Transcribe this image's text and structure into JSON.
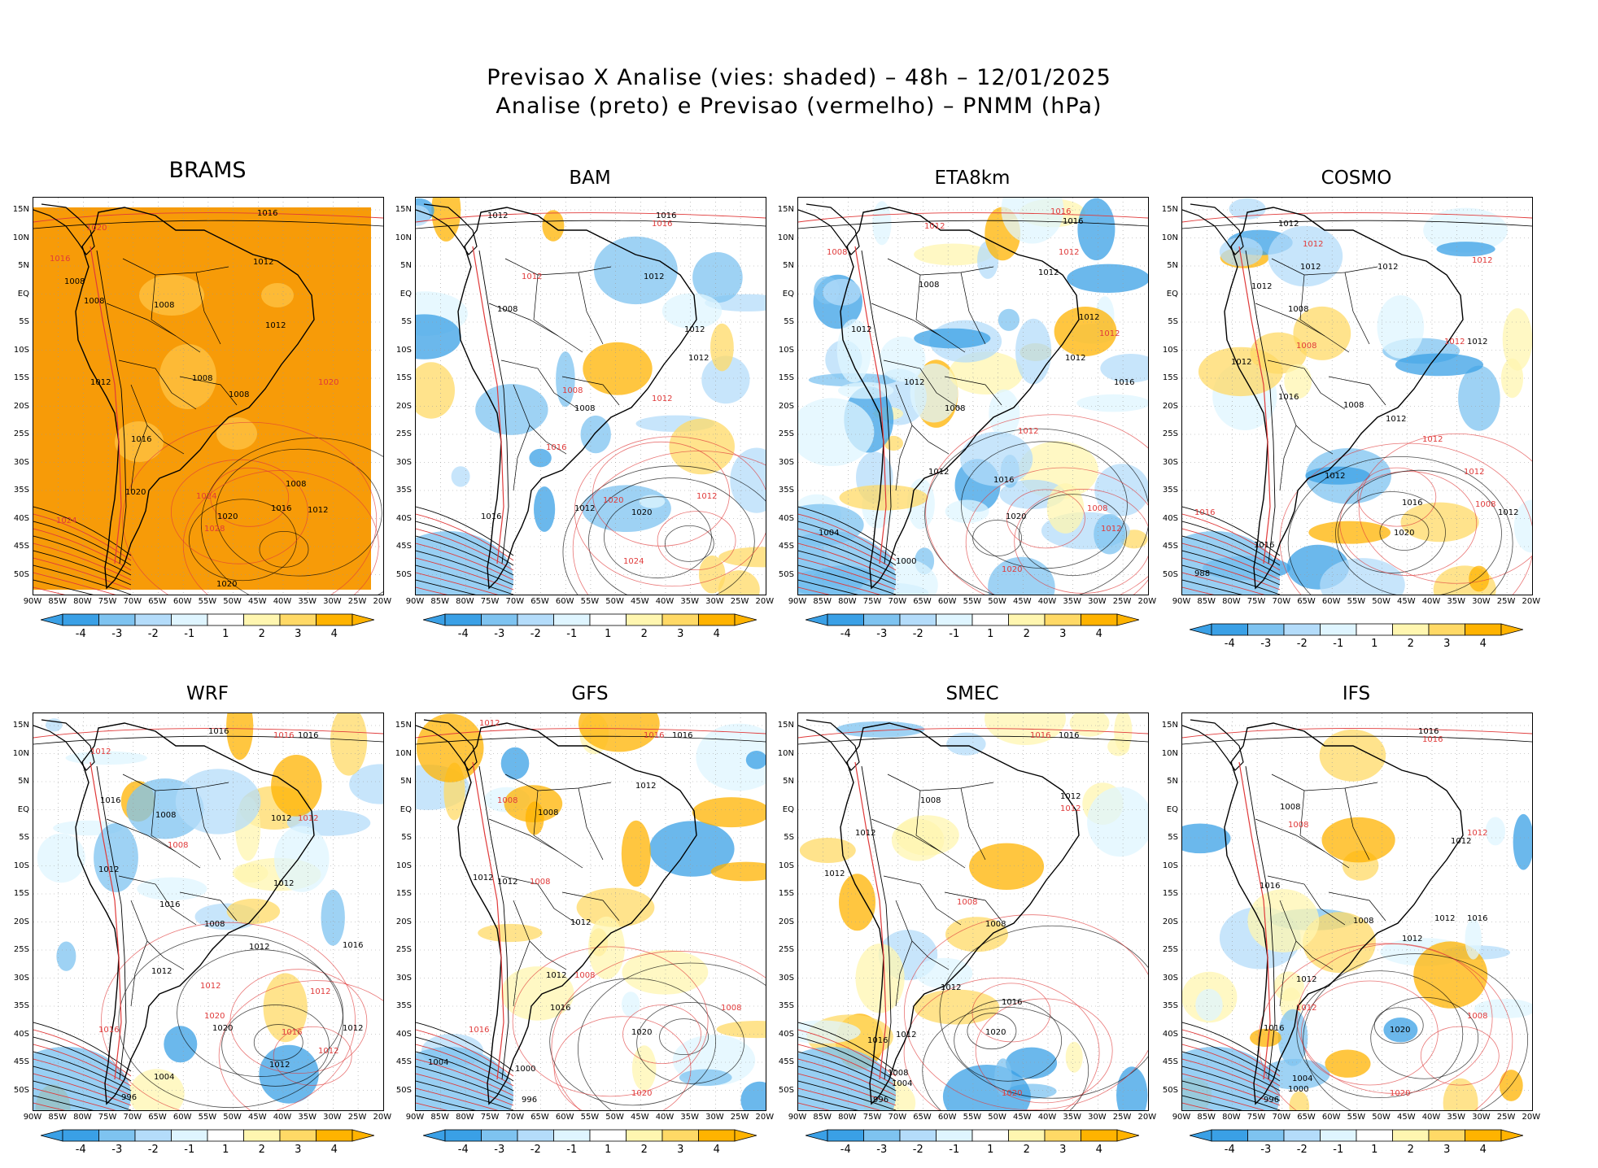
{
  "title": {
    "line1": "Previsao X Analise (vies: shaded) – 48h – 12/01/2025",
    "line2": "Analise (preto) e Previsao (vermelho) – PNMM (hPa)"
  },
  "lat_labels": [
    "15N",
    "10N",
    "5N",
    "EQ",
    "5S",
    "10S",
    "15S",
    "20S",
    "25S",
    "30S",
    "35S",
    "40S",
    "45S",
    "50S"
  ],
  "lon_labels": [
    "90W",
    "85W",
    "80W",
    "75W",
    "70W",
    "65W",
    "60W",
    "55W",
    "50W",
    "45W",
    "40W",
    "35W",
    "30W",
    "25W",
    "20W"
  ],
  "colorbar": {
    "labels": [
      "-4",
      "-3",
      "-2",
      "-1",
      "1",
      "2",
      "3",
      "4"
    ],
    "colors": [
      "#3aa0e6",
      "#7ec3f0",
      "#b4dcfa",
      "#dff5ff",
      "#ffffff",
      "#fff6b0",
      "#ffd966",
      "#ffb300"
    ]
  },
  "colors": {
    "analysis": "#000000",
    "forecast": "#e03a3a",
    "grid": "#999999",
    "brams_bg": "#f79b08"
  },
  "panels": [
    {
      "name": "BRAMS",
      "labels": [
        {
          "t": "1016",
          "x": 275,
          "y": 22,
          "c": "k"
        },
        {
          "t": "1020",
          "x": 65,
          "y": 40,
          "c": "r"
        },
        {
          "t": "1016",
          "x": 20,
          "y": 78,
          "c": "r"
        },
        {
          "t": "1012",
          "x": 270,
          "y": 82,
          "c": "k"
        },
        {
          "t": "1008",
          "x": 38,
          "y": 106,
          "c": "k"
        },
        {
          "t": "1008",
          "x": 62,
          "y": 130,
          "c": "k"
        },
        {
          "t": "1008",
          "x": 148,
          "y": 135,
          "c": "k"
        },
        {
          "t": "1012",
          "x": 285,
          "y": 160,
          "c": "k"
        },
        {
          "t": "1012",
          "x": 70,
          "y": 230,
          "c": "k"
        },
        {
          "t": "1020",
          "x": 350,
          "y": 230,
          "c": "r"
        },
        {
          "t": "1008",
          "x": 195,
          "y": 225,
          "c": "k"
        },
        {
          "t": "1008",
          "x": 240,
          "y": 245,
          "c": "k"
        },
        {
          "t": "1016",
          "x": 120,
          "y": 300,
          "c": "k"
        },
        {
          "t": "1008",
          "x": 310,
          "y": 355,
          "c": "k"
        },
        {
          "t": "1020",
          "x": 113,
          "y": 365,
          "c": "k"
        },
        {
          "t": "1024",
          "x": 200,
          "y": 370,
          "c": "r"
        },
        {
          "t": "1020",
          "x": 226,
          "y": 395,
          "c": "k"
        },
        {
          "t": "1016",
          "x": 292,
          "y": 385,
          "c": "k"
        },
        {
          "t": "1012",
          "x": 337,
          "y": 387,
          "c": "k"
        },
        {
          "t": "1024",
          "x": 28,
          "y": 400,
          "c": "r"
        },
        {
          "t": "1028",
          "x": 210,
          "y": 410,
          "c": "r"
        },
        {
          "t": "1020",
          "x": 225,
          "y": 478,
          "c": "k"
        }
      ]
    },
    {
      "name": "BAM",
      "labels": [
        {
          "t": "1012",
          "x": 88,
          "y": 25,
          "c": "k"
        },
        {
          "t": "1016",
          "x": 295,
          "y": 25,
          "c": "k"
        },
        {
          "t": "1016",
          "x": 290,
          "y": 35,
          "c": "r"
        },
        {
          "t": "1012",
          "x": 130,
          "y": 100,
          "c": "r"
        },
        {
          "t": "1012",
          "x": 280,
          "y": 100,
          "c": "k"
        },
        {
          "t": "1008",
          "x": 100,
          "y": 140,
          "c": "k"
        },
        {
          "t": "1012",
          "x": 330,
          "y": 165,
          "c": "k"
        },
        {
          "t": "1012",
          "x": 335,
          "y": 200,
          "c": "k"
        },
        {
          "t": "1008",
          "x": 180,
          "y": 240,
          "c": "r"
        },
        {
          "t": "1008",
          "x": 195,
          "y": 262,
          "c": "k"
        },
        {
          "t": "1012",
          "x": 290,
          "y": 250,
          "c": "r"
        },
        {
          "t": "1016",
          "x": 160,
          "y": 310,
          "c": "r"
        },
        {
          "t": "1020",
          "x": 230,
          "y": 375,
          "c": "r"
        },
        {
          "t": "1020",
          "x": 265,
          "y": 390,
          "c": "k"
        },
        {
          "t": "1016",
          "x": 80,
          "y": 395,
          "c": "k"
        },
        {
          "t": "1012",
          "x": 345,
          "y": 370,
          "c": "r"
        },
        {
          "t": "1012",
          "x": 195,
          "y": 385,
          "c": "k"
        },
        {
          "t": "1024",
          "x": 255,
          "y": 450,
          "c": "r"
        }
      ]
    },
    {
      "name": "ETA8km",
      "labels": [
        {
          "t": "1016",
          "x": 310,
          "y": 20,
          "c": "r"
        },
        {
          "t": "1016",
          "x": 325,
          "y": 32,
          "c": "k"
        },
        {
          "t": "1012",
          "x": 155,
          "y": 38,
          "c": "r"
        },
        {
          "t": "1008",
          "x": 35,
          "y": 70,
          "c": "r"
        },
        {
          "t": "1012",
          "x": 320,
          "y": 70,
          "c": "r"
        },
        {
          "t": "1012",
          "x": 295,
          "y": 95,
          "c": "k"
        },
        {
          "t": "1008",
          "x": 148,
          "y": 110,
          "c": "k"
        },
        {
          "t": "1012",
          "x": 345,
          "y": 150,
          "c": "k"
        },
        {
          "t": "1012",
          "x": 370,
          "y": 170,
          "c": "r"
        },
        {
          "t": "1012",
          "x": 65,
          "y": 165,
          "c": "k"
        },
        {
          "t": "1012",
          "x": 328,
          "y": 200,
          "c": "k"
        },
        {
          "t": "1016",
          "x": 388,
          "y": 230,
          "c": "k"
        },
        {
          "t": "1012",
          "x": 130,
          "y": 230,
          "c": "k"
        },
        {
          "t": "1008",
          "x": 180,
          "y": 262,
          "c": "k"
        },
        {
          "t": "1012",
          "x": 270,
          "y": 290,
          "c": "r"
        },
        {
          "t": "1012",
          "x": 160,
          "y": 340,
          "c": "k"
        },
        {
          "t": "1016",
          "x": 240,
          "y": 350,
          "c": "k"
        },
        {
          "t": "1020",
          "x": 255,
          "y": 395,
          "c": "k"
        },
        {
          "t": "1008",
          "x": 355,
          "y": 385,
          "c": "r"
        },
        {
          "t": "1004",
          "x": 25,
          "y": 415,
          "c": "k"
        },
        {
          "t": "1012",
          "x": 372,
          "y": 410,
          "c": "r"
        },
        {
          "t": "1000",
          "x": 120,
          "y": 450,
          "c": "k"
        },
        {
          "t": "1020",
          "x": 250,
          "y": 460,
          "c": "r"
        }
      ]
    },
    {
      "name": "COSMO",
      "labels": [
        {
          "t": "1012",
          "x": 118,
          "y": 35,
          "c": "k"
        },
        {
          "t": "1012",
          "x": 148,
          "y": 60,
          "c": "r"
        },
        {
          "t": "1012",
          "x": 145,
          "y": 88,
          "c": "k"
        },
        {
          "t": "1012",
          "x": 240,
          "y": 88,
          "c": "k"
        },
        {
          "t": "1012",
          "x": 356,
          "y": 80,
          "c": "r"
        },
        {
          "t": "1012",
          "x": 85,
          "y": 112,
          "c": "k"
        },
        {
          "t": "1008",
          "x": 130,
          "y": 140,
          "c": "k"
        },
        {
          "t": "1008",
          "x": 140,
          "y": 185,
          "c": "r"
        },
        {
          "t": "1012",
          "x": 322,
          "y": 180,
          "c": "r"
        },
        {
          "t": "1012",
          "x": 350,
          "y": 180,
          "c": "k"
        },
        {
          "t": "1012",
          "x": 60,
          "y": 205,
          "c": "k"
        },
        {
          "t": "1016",
          "x": 118,
          "y": 248,
          "c": "k"
        },
        {
          "t": "1008",
          "x": 198,
          "y": 258,
          "c": "k"
        },
        {
          "t": "1012",
          "x": 250,
          "y": 275,
          "c": "k"
        },
        {
          "t": "1012",
          "x": 295,
          "y": 300,
          "c": "r"
        },
        {
          "t": "1012",
          "x": 346,
          "y": 340,
          "c": "r"
        },
        {
          "t": "1012",
          "x": 175,
          "y": 345,
          "c": "k"
        },
        {
          "t": "1016",
          "x": 270,
          "y": 378,
          "c": "k"
        },
        {
          "t": "1020",
          "x": 260,
          "y": 415,
          "c": "k"
        },
        {
          "t": "1008",
          "x": 360,
          "y": 380,
          "c": "r"
        },
        {
          "t": "1012",
          "x": 388,
          "y": 390,
          "c": "k"
        },
        {
          "t": "1016",
          "x": 88,
          "y": 430,
          "c": "k"
        },
        {
          "t": "1016",
          "x": 15,
          "y": 390,
          "c": "r"
        },
        {
          "t": "988",
          "x": 15,
          "y": 465,
          "c": "k"
        }
      ]
    },
    {
      "name": "WRF",
      "labels": [
        {
          "t": "1016",
          "x": 215,
          "y": 25,
          "c": "k"
        },
        {
          "t": "1016",
          "x": 295,
          "y": 30,
          "c": "r"
        },
        {
          "t": "1016",
          "x": 325,
          "y": 30,
          "c": "k"
        },
        {
          "t": "1012",
          "x": 70,
          "y": 50,
          "c": "r"
        },
        {
          "t": "1008",
          "x": 150,
          "y": 128,
          "c": "k"
        },
        {
          "t": "1012",
          "x": 292,
          "y": 132,
          "c": "k"
        },
        {
          "t": "1012",
          "x": 325,
          "y": 132,
          "c": "r"
        },
        {
          "t": "1016",
          "x": 82,
          "y": 110,
          "c": "k"
        },
        {
          "t": "1008",
          "x": 165,
          "y": 165,
          "c": "r"
        },
        {
          "t": "1012",
          "x": 80,
          "y": 195,
          "c": "k"
        },
        {
          "t": "1012",
          "x": 295,
          "y": 212,
          "c": "k"
        },
        {
          "t": "1016",
          "x": 155,
          "y": 238,
          "c": "k"
        },
        {
          "t": "1008",
          "x": 210,
          "y": 262,
          "c": "k"
        },
        {
          "t": "1012",
          "x": 265,
          "y": 290,
          "c": "k"
        },
        {
          "t": "1016",
          "x": 380,
          "y": 288,
          "c": "k"
        },
        {
          "t": "1012",
          "x": 145,
          "y": 320,
          "c": "k"
        },
        {
          "t": "1012",
          "x": 205,
          "y": 338,
          "c": "r"
        },
        {
          "t": "1012",
          "x": 340,
          "y": 345,
          "c": "r"
        },
        {
          "t": "1016",
          "x": 305,
          "y": 395,
          "c": "r"
        },
        {
          "t": "1020",
          "x": 210,
          "y": 375,
          "c": "r"
        },
        {
          "t": "1020",
          "x": 220,
          "y": 390,
          "c": "k"
        },
        {
          "t": "1012",
          "x": 380,
          "y": 390,
          "c": "k"
        },
        {
          "t": "1012",
          "x": 350,
          "y": 418,
          "c": "r"
        },
        {
          "t": "1012",
          "x": 290,
          "y": 435,
          "c": "k"
        },
        {
          "t": "1016",
          "x": 80,
          "y": 392,
          "c": "r"
        },
        {
          "t": "1004",
          "x": 148,
          "y": 450,
          "c": "k"
        },
        {
          "t": "996",
          "x": 108,
          "y": 475,
          "c": "k"
        }
      ]
    },
    {
      "name": "GFS",
      "labels": [
        {
          "t": "1012",
          "x": 78,
          "y": 15,
          "c": "r"
        },
        {
          "t": "1016",
          "x": 280,
          "y": 30,
          "c": "r"
        },
        {
          "t": "1016",
          "x": 315,
          "y": 30,
          "c": "k"
        },
        {
          "t": "1012",
          "x": 270,
          "y": 92,
          "c": "k"
        },
        {
          "t": "1008",
          "x": 100,
          "y": 110,
          "c": "r"
        },
        {
          "t": "1008",
          "x": 150,
          "y": 125,
          "c": "k"
        },
        {
          "t": "1012",
          "x": 70,
          "y": 205,
          "c": "k"
        },
        {
          "t": "1012",
          "x": 100,
          "y": 210,
          "c": "k"
        },
        {
          "t": "1008",
          "x": 140,
          "y": 210,
          "c": "r"
        },
        {
          "t": "1012",
          "x": 190,
          "y": 260,
          "c": "k"
        },
        {
          "t": "1008",
          "x": 195,
          "y": 325,
          "c": "r"
        },
        {
          "t": "1012",
          "x": 160,
          "y": 325,
          "c": "k"
        },
        {
          "t": "1016",
          "x": 165,
          "y": 365,
          "c": "k"
        },
        {
          "t": "1008",
          "x": 375,
          "y": 365,
          "c": "r"
        },
        {
          "t": "1020",
          "x": 265,
          "y": 395,
          "c": "k"
        },
        {
          "t": "1016",
          "x": 65,
          "y": 392,
          "c": "r"
        },
        {
          "t": "1004",
          "x": 15,
          "y": 432,
          "c": "k"
        },
        {
          "t": "1000",
          "x": 122,
          "y": 440,
          "c": "k"
        },
        {
          "t": "996",
          "x": 130,
          "y": 478,
          "c": "k"
        },
        {
          "t": "1020",
          "x": 265,
          "y": 470,
          "c": "r"
        }
      ]
    },
    {
      "name": "SMEC",
      "labels": [
        {
          "t": "1016",
          "x": 285,
          "y": 30,
          "c": "r"
        },
        {
          "t": "1016",
          "x": 320,
          "y": 30,
          "c": "k"
        },
        {
          "t": "1012",
          "x": 322,
          "y": 105,
          "c": "k"
        },
        {
          "t": "1012",
          "x": 322,
          "y": 120,
          "c": "r"
        },
        {
          "t": "1008",
          "x": 150,
          "y": 110,
          "c": "k"
        },
        {
          "t": "1012",
          "x": 70,
          "y": 150,
          "c": "k"
        },
        {
          "t": "1012",
          "x": 32,
          "y": 200,
          "c": "k"
        },
        {
          "t": "1008",
          "x": 195,
          "y": 235,
          "c": "r"
        },
        {
          "t": "1008",
          "x": 230,
          "y": 262,
          "c": "k"
        },
        {
          "t": "1012",
          "x": 175,
          "y": 340,
          "c": "k"
        },
        {
          "t": "1016",
          "x": 250,
          "y": 358,
          "c": "k"
        },
        {
          "t": "1020",
          "x": 230,
          "y": 395,
          "c": "k"
        },
        {
          "t": "1016",
          "x": 85,
          "y": 405,
          "c": "k"
        },
        {
          "t": "1012",
          "x": 120,
          "y": 398,
          "c": "k"
        },
        {
          "t": "1008",
          "x": 110,
          "y": 445,
          "c": "k"
        },
        {
          "t": "1004",
          "x": 115,
          "y": 458,
          "c": "k"
        },
        {
          "t": "996",
          "x": 92,
          "y": 478,
          "c": "k"
        },
        {
          "t": "1020",
          "x": 250,
          "y": 470,
          "c": "r"
        }
      ]
    },
    {
      "name": "IFS",
      "labels": [
        {
          "t": "1016",
          "x": 290,
          "y": 25,
          "c": "k"
        },
        {
          "t": "1016",
          "x": 295,
          "y": 35,
          "c": "r"
        },
        {
          "t": "1008",
          "x": 120,
          "y": 118,
          "c": "k"
        },
        {
          "t": "1008",
          "x": 130,
          "y": 140,
          "c": "r"
        },
        {
          "t": "1012",
          "x": 350,
          "y": 150,
          "c": "r"
        },
        {
          "t": "1012",
          "x": 330,
          "y": 160,
          "c": "k"
        },
        {
          "t": "1016",
          "x": 95,
          "y": 215,
          "c": "k"
        },
        {
          "t": "1008",
          "x": 210,
          "y": 258,
          "c": "k"
        },
        {
          "t": "1012",
          "x": 270,
          "y": 280,
          "c": "k"
        },
        {
          "t": "1016",
          "x": 350,
          "y": 255,
          "c": "k"
        },
        {
          "t": "1012",
          "x": 310,
          "y": 255,
          "c": "k"
        },
        {
          "t": "1012",
          "x": 140,
          "y": 330,
          "c": "k"
        },
        {
          "t": "1012",
          "x": 140,
          "y": 365,
          "c": "r"
        },
        {
          "t": "1008",
          "x": 350,
          "y": 375,
          "c": "r"
        },
        {
          "t": "1016",
          "x": 100,
          "y": 390,
          "c": "k"
        },
        {
          "t": "1020",
          "x": 255,
          "y": 392,
          "c": "k"
        },
        {
          "t": "1004",
          "x": 135,
          "y": 452,
          "c": "k"
        },
        {
          "t": "1000",
          "x": 130,
          "y": 465,
          "c": "k"
        },
        {
          "t": "996",
          "x": 100,
          "y": 478,
          "c": "k"
        },
        {
          "t": "1020",
          "x": 255,
          "y": 470,
          "c": "r"
        }
      ]
    }
  ]
}
